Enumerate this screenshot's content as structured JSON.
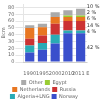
{
  "chart_data": {
    "type": "bar",
    "stacked": true,
    "categories": [
      "1990",
      "1995",
      "2000",
      "2010",
      "2011 E"
    ],
    "series": [
      {
        "name": "Norway",
        "color": "#3a4fcc",
        "values": [
          14,
          18,
          27,
          42,
          42
        ],
        "value_labels": [
          null,
          null,
          null,
          null,
          "42 %"
        ]
      },
      {
        "name": "Algeria+LNG",
        "color": "#2aabb5",
        "values": [
          10,
          10,
          13,
          4,
          4
        ],
        "value_labels": [
          null,
          null,
          null,
          null,
          "4 %"
        ]
      },
      {
        "name": "Russia",
        "color": "#cc3333",
        "values": [
          10,
          11,
          16,
          14,
          14
        ],
        "value_labels": [
          null,
          null,
          null,
          null,
          "14 %"
        ]
      },
      {
        "name": "Netherlands",
        "color": "#e87722",
        "values": [
          16,
          12,
          10,
          6,
          6
        ],
        "value_labels": [
          null,
          null,
          null,
          null,
          "6 %"
        ]
      },
      {
        "name": "Egypt",
        "color": "#99cc33",
        "values": [
          0,
          0,
          0,
          2,
          2
        ],
        "value_labels": [
          null,
          null,
          null,
          null,
          "2 %"
        ]
      },
      {
        "name": "Other",
        "color": "#aaaaaa",
        "values": [
          4,
          5,
          7,
          8,
          10
        ],
        "value_labels": [
          null,
          null,
          null,
          null,
          "10 %"
        ]
      }
    ],
    "ylabel": "Bcm",
    "ylim": [
      0,
      85
    ],
    "yticks": [
      0,
      10,
      20,
      30,
      40,
      50,
      60,
      70,
      80
    ],
    "grid": true,
    "legend": "bottom"
  }
}
